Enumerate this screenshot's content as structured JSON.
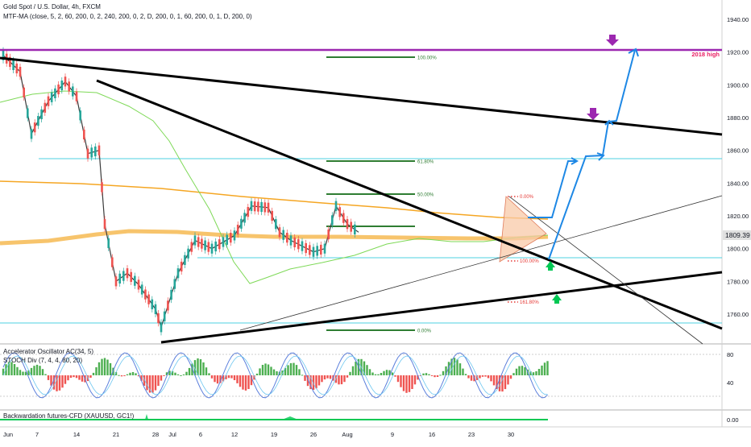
{
  "legend": {
    "symbol_line": "Gold Spot / U.S. Dollar, 4h, FXCM",
    "ma_line": "MTF-MA (close, 5, 2, 60, 200, 0, 2, 240, 200, 0, 2, D, 200, 0, 1, 60, 200, 0, 1, D, 200, 0)"
  },
  "indicators": {
    "oscillator_label": "Accelerator Oscillator AC(34, 5)",
    "stoch_label": "STOCH Div (7, 4, 4, 80, 20)",
    "backwardation_label": "Backwardation futures-CFD (XAUUSD, GC1!)"
  },
  "colors": {
    "candle_up": "#26a69a",
    "candle_down": "#ef5350",
    "trendline": "#000000",
    "ma_orange": "#f5a623",
    "ma_green": "#7ed957",
    "projection": "#1e88e5",
    "high_line": "#9c27b0",
    "fib_green": "#2e7d32",
    "fib_red": "#e53935",
    "hline": "#4dd0e1",
    "triangle_fill": "#f8c9a8",
    "price_tag": "#e0e0e0"
  },
  "chart_data": [
    {
      "type": "candlestick",
      "title": "Gold Spot / U.S. Dollar, 4h, FXCM",
      "price_label": "1809.39",
      "annotation": "2018 high",
      "ylim": [
        1740,
        1950
      ],
      "y_ticks": [
        "1940.00",
        "1920.00",
        "1900.00",
        "1880.00",
        "1860.00",
        "1840.00",
        "1820.00",
        "1800.00",
        "1780.00",
        "1760.00"
      ],
      "x_ticks": [
        "Jun",
        "7",
        "14",
        "21",
        "28",
        "Jul",
        "6",
        "12",
        "19",
        "26",
        "Aug",
        "9",
        "16",
        "23",
        "30"
      ],
      "fib_levels_main": [
        "100.00%",
        "61.80%",
        "50.00%",
        "0.00%"
      ],
      "fib_levels_small": [
        "0.00%",
        "100.00%",
        "161.80%"
      ],
      "grid": false,
      "trend": [
        {
          "date": "Jun 1",
          "price": 1918
        },
        {
          "date": "Jun 4",
          "price": 1908
        },
        {
          "date": "Jun 6",
          "price": 1870
        },
        {
          "date": "Jun 9",
          "price": 1890
        },
        {
          "date": "Jun 12",
          "price": 1902
        },
        {
          "date": "Jun 14",
          "price": 1893
        },
        {
          "date": "Jun 16",
          "price": 1858
        },
        {
          "date": "Jun 18",
          "price": 1860
        },
        {
          "date": "Jun 19",
          "price": 1815
        },
        {
          "date": "Jun 21",
          "price": 1780
        },
        {
          "date": "Jun 23",
          "price": 1785
        },
        {
          "date": "Jun 25",
          "price": 1778
        },
        {
          "date": "Jun 28",
          "price": 1763
        },
        {
          "date": "Jun 29",
          "price": 1752
        },
        {
          "date": "Jul 2",
          "price": 1785
        },
        {
          "date": "Jul 5",
          "price": 1805
        },
        {
          "date": "Jul 8",
          "price": 1800
        },
        {
          "date": "Jul 12",
          "price": 1808
        },
        {
          "date": "Jul 15",
          "price": 1826
        },
        {
          "date": "Jul 18",
          "price": 1825
        },
        {
          "date": "Jul 20",
          "price": 1810
        },
        {
          "date": "Jul 22",
          "price": 1805
        },
        {
          "date": "Jul 26",
          "price": 1798
        },
        {
          "date": "Jul 28",
          "price": 1800
        },
        {
          "date": "Jul 30",
          "price": 1826
        },
        {
          "date": "Aug 1",
          "price": 1815
        },
        {
          "date": "Aug 3",
          "price": 1810
        }
      ]
    },
    {
      "type": "bar",
      "title": "Accelerator Oscillator AC(34, 5)",
      "y_ticks": [
        "80",
        "40"
      ]
    },
    {
      "type": "area",
      "title": "Backwardation futures-CFD (XAUUSD, GC1!)",
      "y_ticks": [
        "0.00"
      ]
    }
  ]
}
